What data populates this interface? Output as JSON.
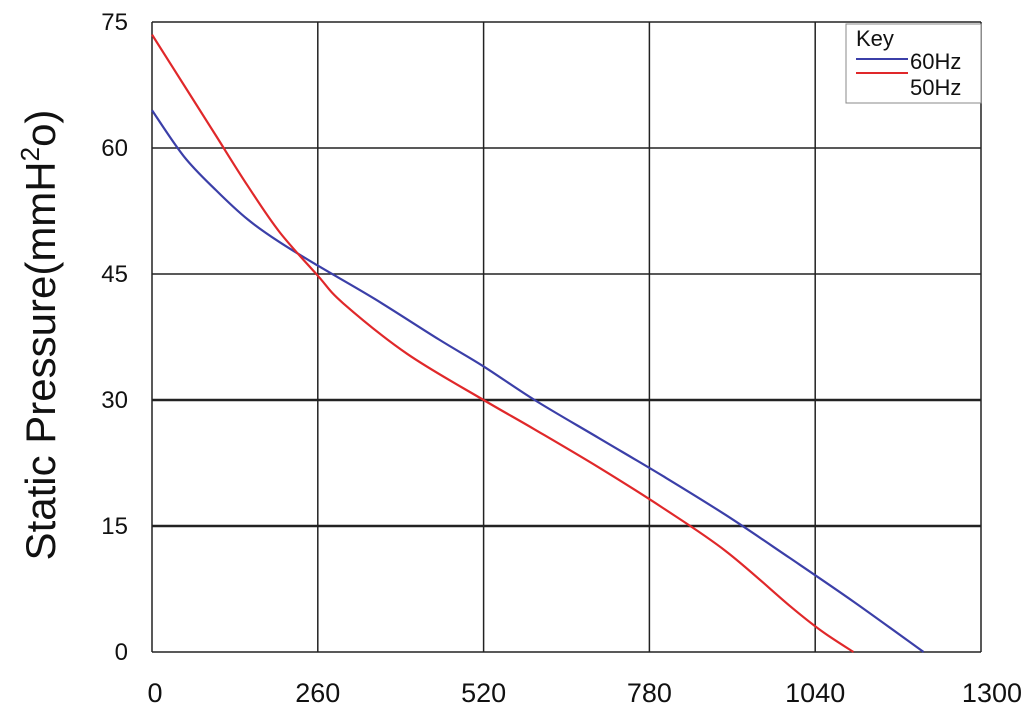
{
  "chart_data": {
    "type": "line",
    "title": "",
    "xlabel": "",
    "ylabel_main": "Static Pressure(mmH",
    "ylabel_sup": "2",
    "ylabel_tail": "o)",
    "xlim": [
      0,
      1300
    ],
    "ylim": [
      0,
      75
    ],
    "x_ticks": [
      0,
      260,
      520,
      780,
      1040,
      1300
    ],
    "x_tick_labels": [
      "0",
      "260",
      "520",
      "780",
      "1040",
      "1300"
    ],
    "y_ticks": [
      0,
      15,
      30,
      45,
      60,
      75
    ],
    "y_tick_labels": [
      "0",
      "15",
      "30",
      "45",
      "60",
      "75"
    ],
    "grid": true,
    "legend": {
      "title": "Key",
      "position": "top-right"
    },
    "series": [
      {
        "name": "60Hz",
        "color": "#3b3fa8",
        "x": [
          0,
          50,
          100,
          150,
          200,
          260,
          350,
          450,
          520,
          600,
          700,
          800,
          900,
          1000,
          1100,
          1210
        ],
        "y": [
          64.5,
          59,
          55,
          51.5,
          48.8,
          46,
          42,
          37.2,
          34,
          30,
          25.5,
          21,
          16.3,
          11.2,
          6,
          0
        ]
      },
      {
        "name": "50Hz",
        "color": "#e0282a",
        "x": [
          0,
          50,
          100,
          150,
          200,
          260,
          300,
          400,
          520,
          600,
          700,
          800,
          900,
          1000,
          1050,
          1100
        ],
        "y": [
          73.5,
          67.5,
          61.5,
          55.5,
          50,
          44.8,
          41.5,
          35.5,
          30,
          26.5,
          22,
          17.2,
          12,
          5.5,
          2.5,
          0
        ]
      }
    ]
  }
}
